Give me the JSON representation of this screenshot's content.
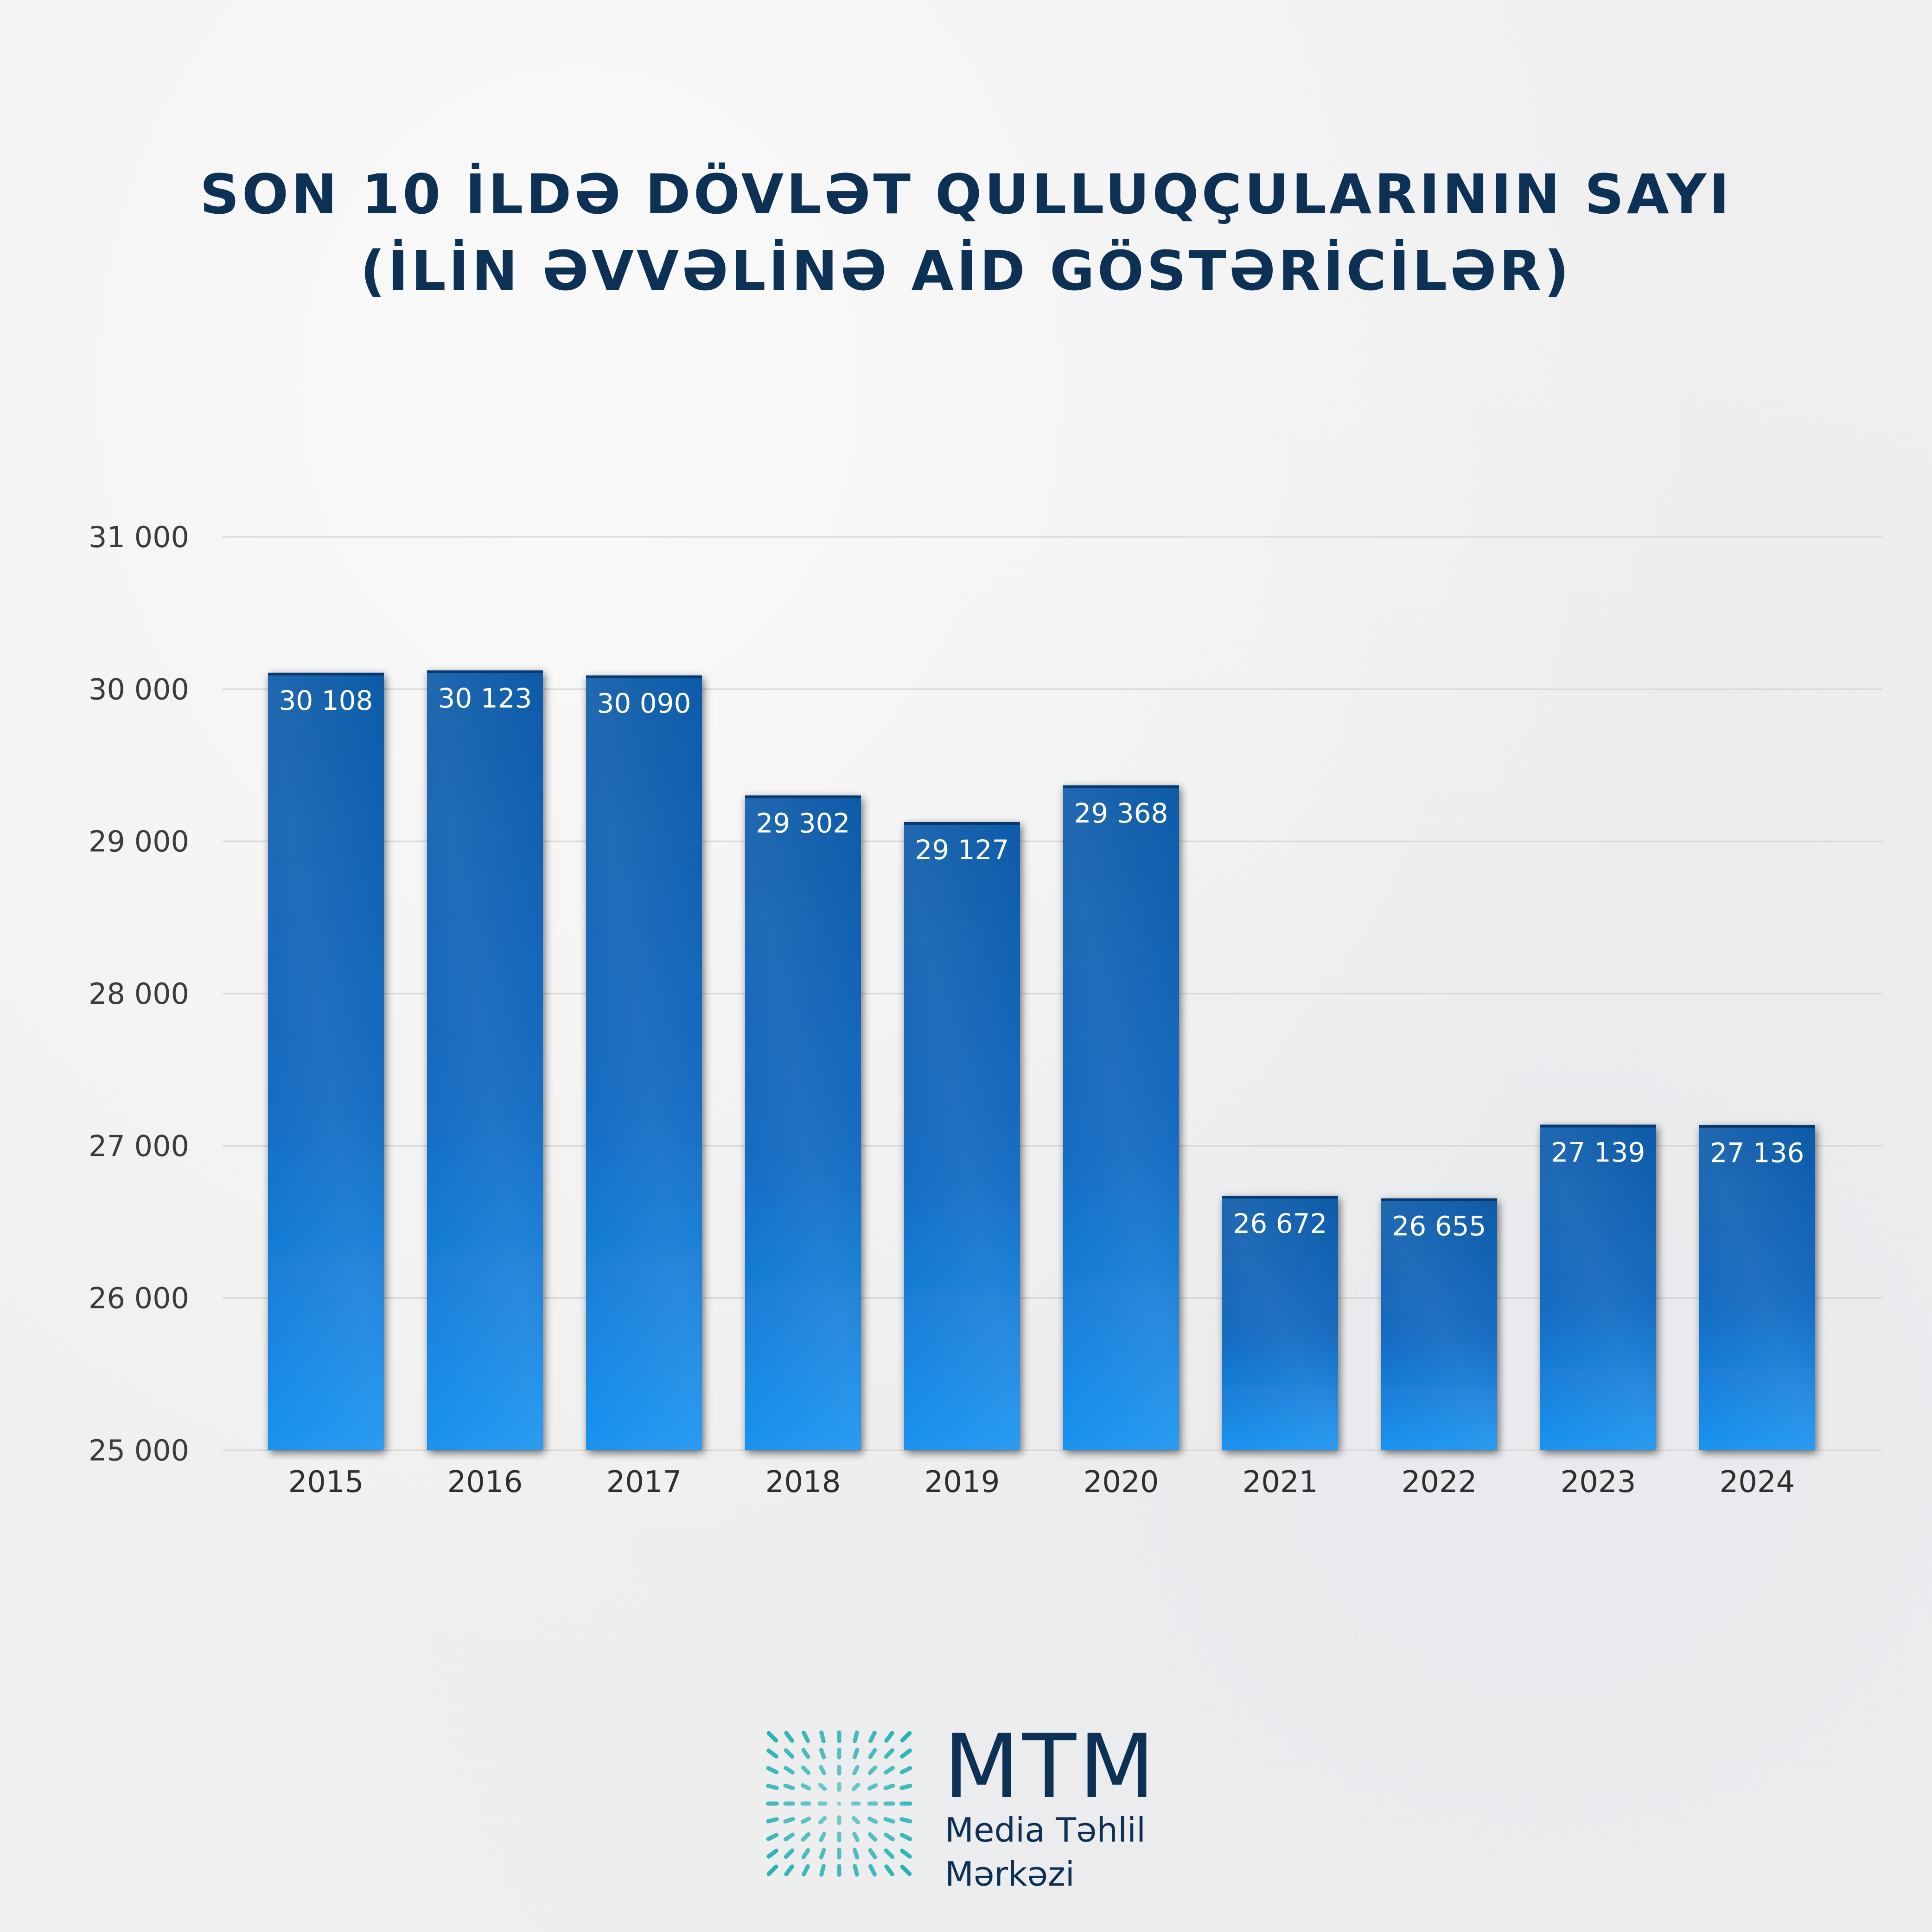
{
  "title": {
    "line1": "SON 10 İLDƏ DÖVLƏT QULLUQÇULARININ SAYI",
    "line2": "(İLİN ƏVVƏLİNƏ AİD GÖSTƏRİCİLƏR)"
  },
  "chart_data": {
    "type": "bar",
    "categories": [
      "2015",
      "2016",
      "2017",
      "2018",
      "2019",
      "2020",
      "2021",
      "2022",
      "2023",
      "2024"
    ],
    "values": [
      30108,
      30123,
      30090,
      29302,
      29127,
      29368,
      26672,
      26655,
      27139,
      27136
    ],
    "value_labels": [
      "30 108",
      "30 123",
      "30 090",
      "29 302",
      "29 127",
      "29 368",
      "26 672",
      "26 655",
      "27 139",
      "27 136"
    ],
    "ylim": [
      25000,
      31000
    ],
    "yticks": [
      25000,
      26000,
      27000,
      28000,
      29000,
      30000,
      31000
    ],
    "ytick_labels": [
      "25 000",
      "26 000",
      "27 000",
      "28 000",
      "29 000",
      "30 000",
      "31 000"
    ],
    "grid": true,
    "colors": {
      "bar_top": "#0a5aa8",
      "bar_bottom": "#1a93f0",
      "grid": "#d8d8d8",
      "axis_text": "#3c3c3c",
      "title": "#0c3154",
      "label": "#ffffff"
    }
  },
  "logo": {
    "abbr": "MTM",
    "line1": "Media Təhlil",
    "line2": "Mərkəzi",
    "colors": {
      "text": "#0c3154",
      "mark": "#29b3b6"
    }
  }
}
